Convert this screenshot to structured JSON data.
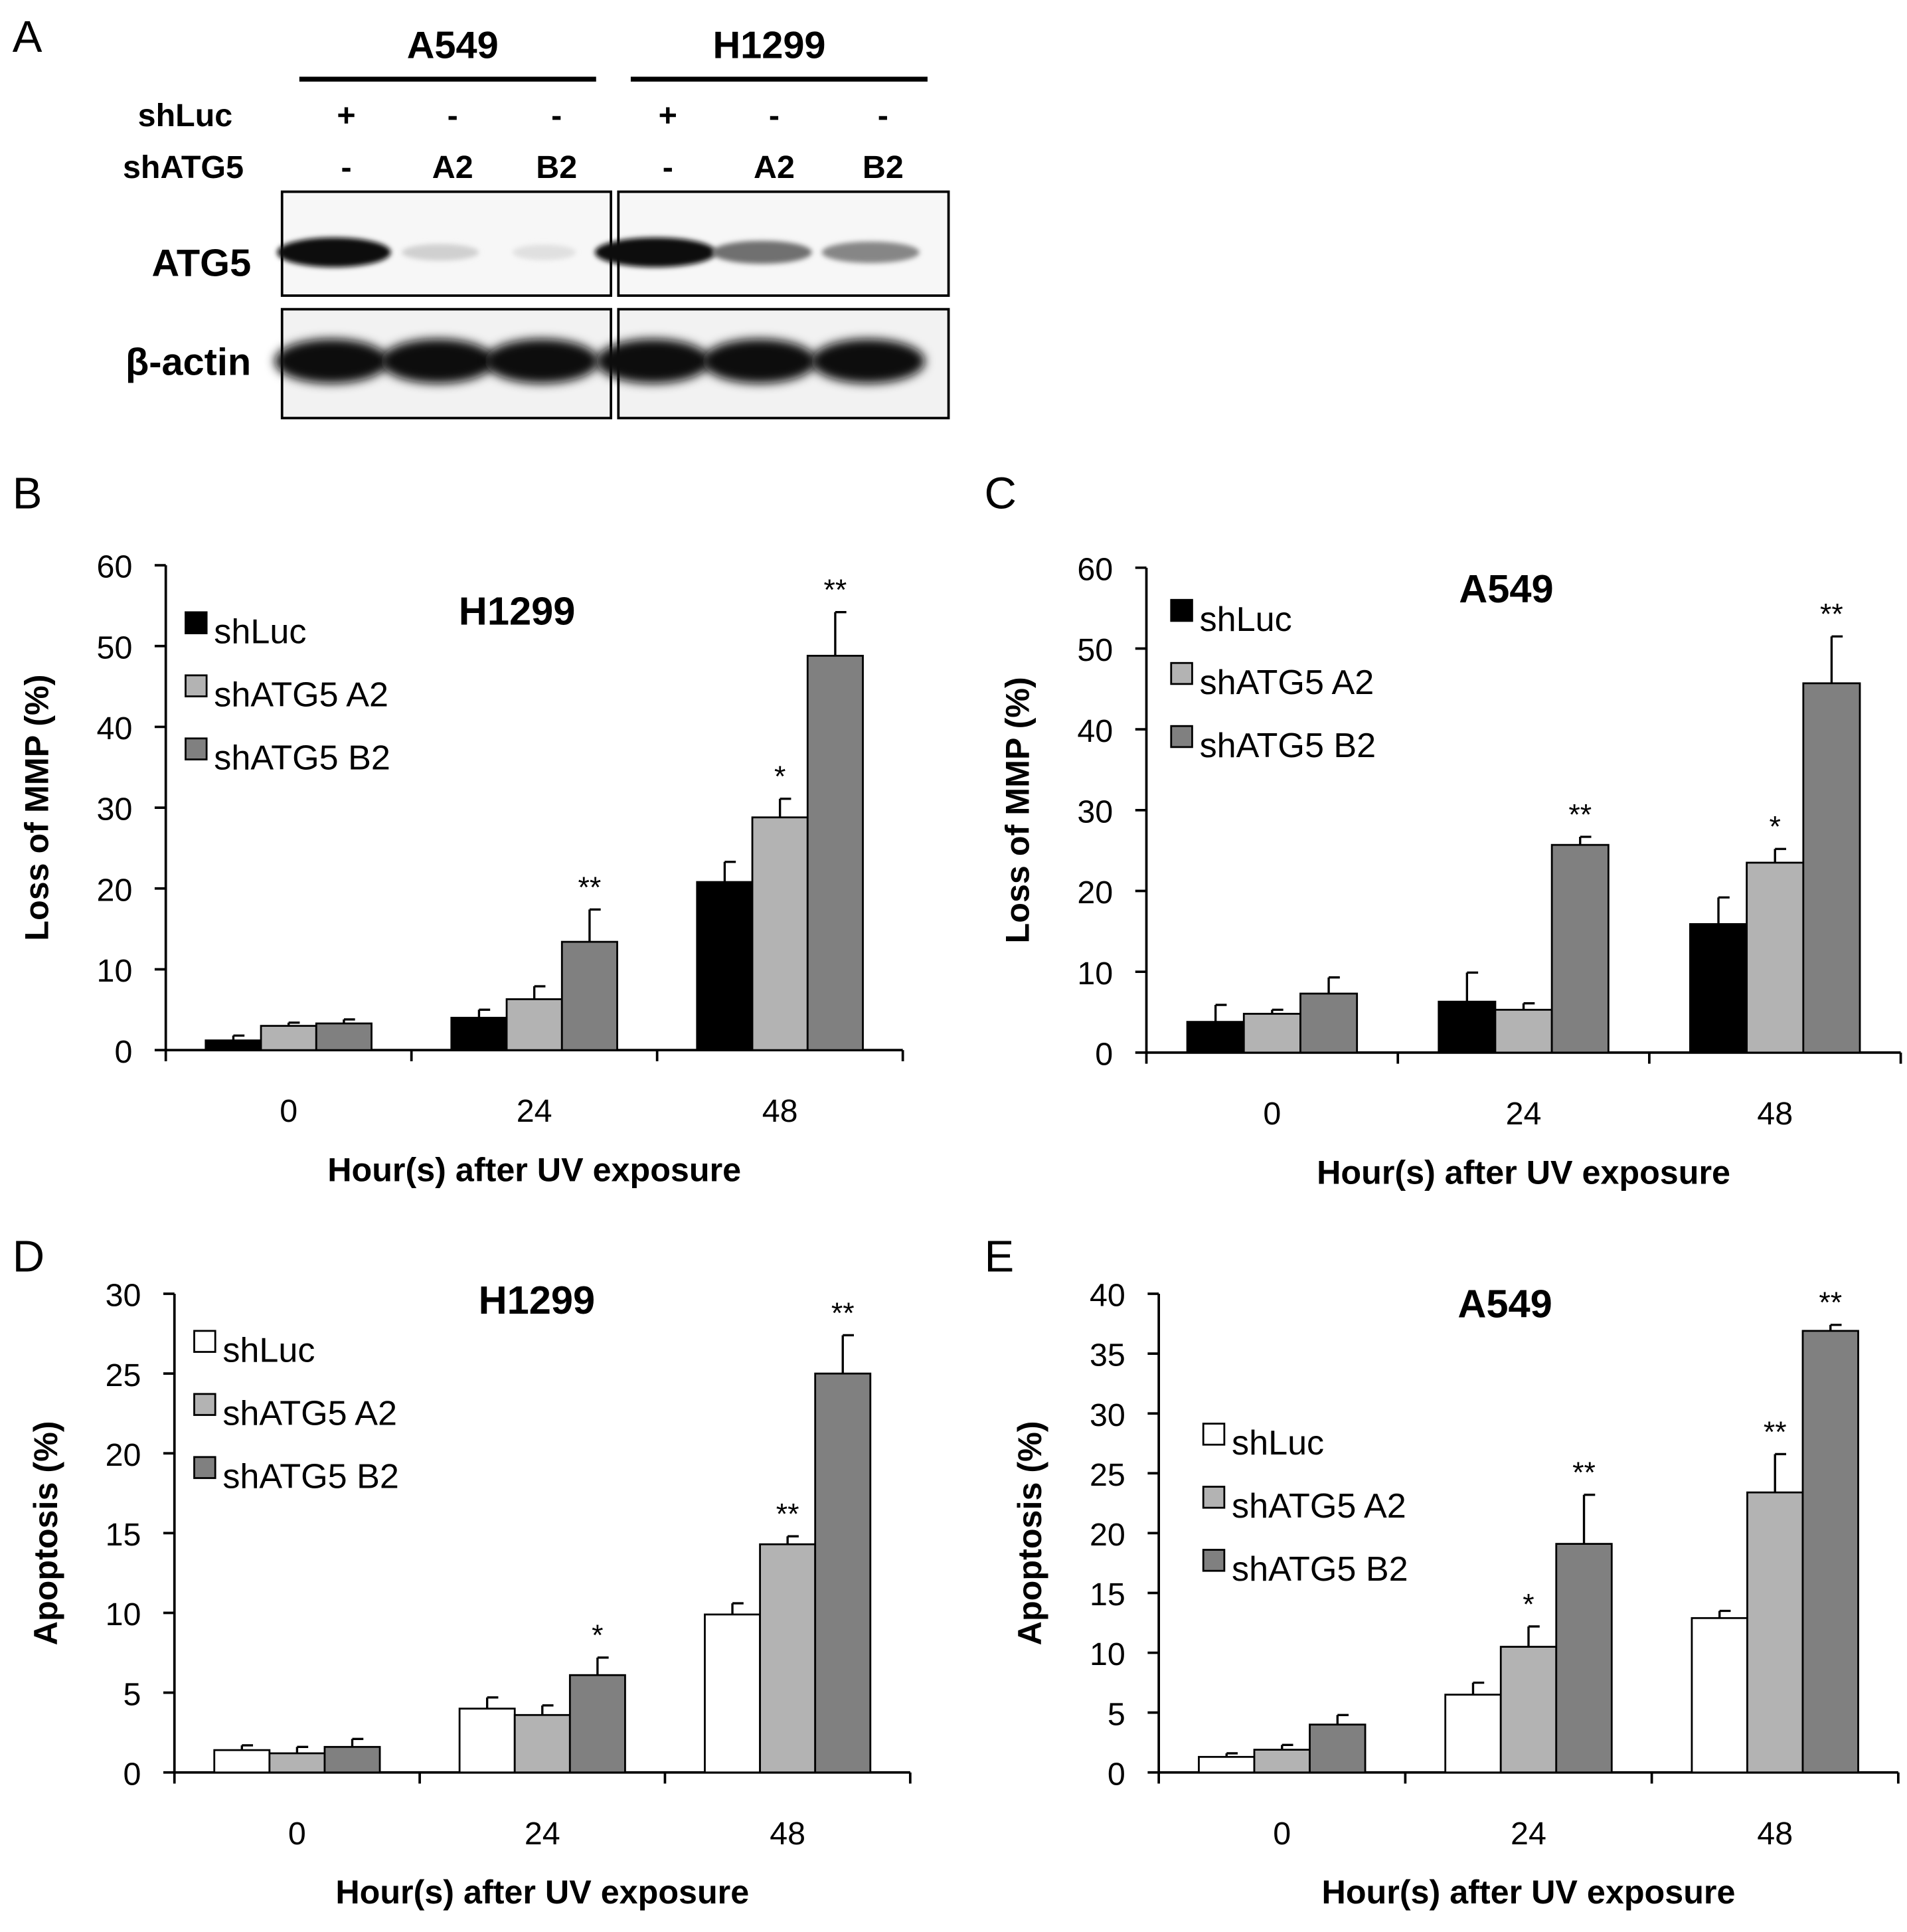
{
  "colors": {
    "black": "#000000",
    "light_gray": "#b3b3b3",
    "dark_gray": "#808080",
    "white": "#ffffff"
  },
  "panel_a": {
    "letter": "A",
    "cell_lines": [
      "A549",
      "H1299"
    ],
    "row_labels": [
      "shLuc",
      "shATG5"
    ],
    "lanes": [
      {
        "shLuc": "+",
        "shATG5": "-"
      },
      {
        "shLuc": "-",
        "shATG5": "A2"
      },
      {
        "shLuc": "-",
        "shATG5": "B2"
      },
      {
        "shLuc": "+",
        "shATG5": "-"
      },
      {
        "shLuc": "-",
        "shATG5": "A2"
      },
      {
        "shLuc": "-",
        "shATG5": "B2"
      }
    ],
    "blot_labels": [
      "ATG5",
      "β-actin"
    ],
    "atg5_band_intensity": [
      1.0,
      0.12,
      0.05,
      1.0,
      0.55,
      0.45
    ],
    "actin_band_intensity": [
      1.0,
      1.0,
      1.0,
      1.0,
      1.0,
      1.0
    ]
  },
  "chart_data": [
    {
      "letter": "B",
      "type": "bar",
      "title": "H1299",
      "xlabel": "Hour(s) after UV exposure",
      "ylabel": "Loss of MMP (%)",
      "categories": [
        "0",
        "24",
        "48"
      ],
      "ylim": [
        0,
        60
      ],
      "yticks": [
        0,
        10,
        20,
        30,
        40,
        50,
        60
      ],
      "legend_position": "top-left",
      "series": [
        {
          "name": "shLuc",
          "color": "#000000",
          "values": [
            1.2,
            4.0,
            20.8
          ],
          "errors": [
            0.6,
            1.0,
            2.5
          ],
          "sig": [
            "",
            "",
            ""
          ]
        },
        {
          "name": "shATG5 A2",
          "color": "#b3b3b3",
          "values": [
            3.0,
            6.3,
            28.8
          ],
          "errors": [
            0.4,
            1.6,
            2.3
          ],
          "sig": [
            "",
            "",
            "*"
          ]
        },
        {
          "name": "shATG5 B2",
          "color": "#808080",
          "values": [
            3.3,
            13.4,
            48.8
          ],
          "errors": [
            0.5,
            4.0,
            5.4
          ],
          "sig": [
            "",
            "**",
            "**"
          ]
        }
      ]
    },
    {
      "letter": "C",
      "type": "bar",
      "title": "A549",
      "xlabel": "Hour(s) after UV exposure",
      "ylabel": "Loss of MMP (%)",
      "categories": [
        "0",
        "24",
        "48"
      ],
      "ylim": [
        0,
        60
      ],
      "yticks": [
        0,
        10,
        20,
        30,
        40,
        50,
        60
      ],
      "legend_position": "top-left",
      "series": [
        {
          "name": "shLuc",
          "color": "#000000",
          "values": [
            3.8,
            6.3,
            15.9
          ],
          "errors": [
            2.1,
            3.6,
            3.3
          ],
          "sig": [
            "",
            "",
            ""
          ]
        },
        {
          "name": "shATG5 A2",
          "color": "#b3b3b3",
          "values": [
            4.8,
            5.3,
            23.5
          ],
          "errors": [
            0.5,
            0.8,
            1.7
          ],
          "sig": [
            "",
            "",
            "*"
          ]
        },
        {
          "name": "shATG5 B2",
          "color": "#808080",
          "values": [
            7.3,
            25.7,
            45.7
          ],
          "errors": [
            2.0,
            1.0,
            5.8
          ],
          "sig": [
            "",
            "**",
            "**"
          ]
        }
      ]
    },
    {
      "letter": "D",
      "type": "bar",
      "title": "H1299",
      "xlabel": "Hour(s) after UV exposure",
      "ylabel": "Apoptosis (%)",
      "categories": [
        "0",
        "24",
        "48"
      ],
      "ylim": [
        0,
        30
      ],
      "yticks": [
        0,
        5,
        10,
        15,
        20,
        25,
        30
      ],
      "legend_position": "top-left",
      "series": [
        {
          "name": "shLuc",
          "color": "#ffffff",
          "values": [
            1.4,
            4.0,
            9.9
          ],
          "errors": [
            0.3,
            0.7,
            0.7
          ],
          "sig": [
            "",
            "",
            ""
          ]
        },
        {
          "name": "shATG5 A2",
          "color": "#b3b3b3",
          "values": [
            1.2,
            3.6,
            14.3
          ],
          "errors": [
            0.4,
            0.6,
            0.5
          ],
          "sig": [
            "",
            "",
            "**"
          ]
        },
        {
          "name": "shATG5 B2",
          "color": "#808080",
          "values": [
            1.6,
            6.1,
            25.0
          ],
          "errors": [
            0.5,
            1.1,
            2.4
          ],
          "sig": [
            "",
            "*",
            "**"
          ]
        }
      ]
    },
    {
      "letter": "E",
      "type": "bar",
      "title": "A549",
      "xlabel": "Hour(s) after UV exposure",
      "ylabel": "Apoptosis (%)",
      "categories": [
        "0",
        "24",
        "48"
      ],
      "ylim": [
        0,
        40
      ],
      "yticks": [
        0,
        5,
        10,
        15,
        20,
        25,
        30,
        35,
        40
      ],
      "legend_position": "top-left",
      "series": [
        {
          "name": "shLuc",
          "color": "#ffffff",
          "values": [
            1.3,
            6.5,
            12.9
          ],
          "errors": [
            0.3,
            1.0,
            0.6
          ],
          "sig": [
            "",
            "",
            ""
          ]
        },
        {
          "name": "shATG5 A2",
          "color": "#b3b3b3",
          "values": [
            1.9,
            10.5,
            23.4
          ],
          "errors": [
            0.4,
            1.7,
            3.2
          ],
          "sig": [
            "",
            "*",
            "**"
          ]
        },
        {
          "name": "shATG5 B2",
          "color": "#808080",
          "values": [
            4.0,
            19.1,
            36.9
          ],
          "errors": [
            0.8,
            4.1,
            0.5
          ],
          "sig": [
            "",
            "**",
            "**"
          ]
        }
      ]
    }
  ]
}
